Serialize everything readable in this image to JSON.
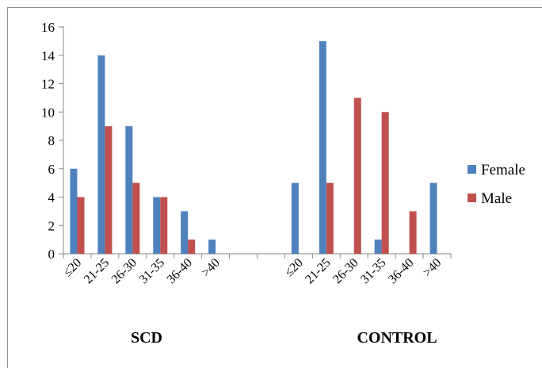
{
  "chart_data": {
    "type": "bar",
    "categories": [
      "≤20",
      "21-25",
      "26-30",
      "31-35",
      "36-40",
      ">40",
      "",
      "",
      "≤20",
      "21-25",
      "26-30",
      "31-35",
      "36-40",
      ">40"
    ],
    "groups": [
      "SCD",
      "CONTROL"
    ],
    "series": [
      {
        "name": "Female",
        "color": "#4f81bd",
        "values": [
          6,
          14,
          9,
          4,
          3,
          1,
          null,
          null,
          5,
          15,
          0,
          1,
          0,
          5
        ]
      },
      {
        "name": "Male",
        "color": "#c0504d",
        "values": [
          4,
          9,
          5,
          4,
          1,
          0,
          null,
          null,
          0,
          5,
          11,
          10,
          3,
          0
        ]
      }
    ],
    "yticks": [
      "0",
      "2",
      "4",
      "6",
      "8",
      "10",
      "12",
      "14",
      "16"
    ],
    "ylim": [
      0,
      16
    ],
    "legend_position": "right",
    "grid": false
  }
}
